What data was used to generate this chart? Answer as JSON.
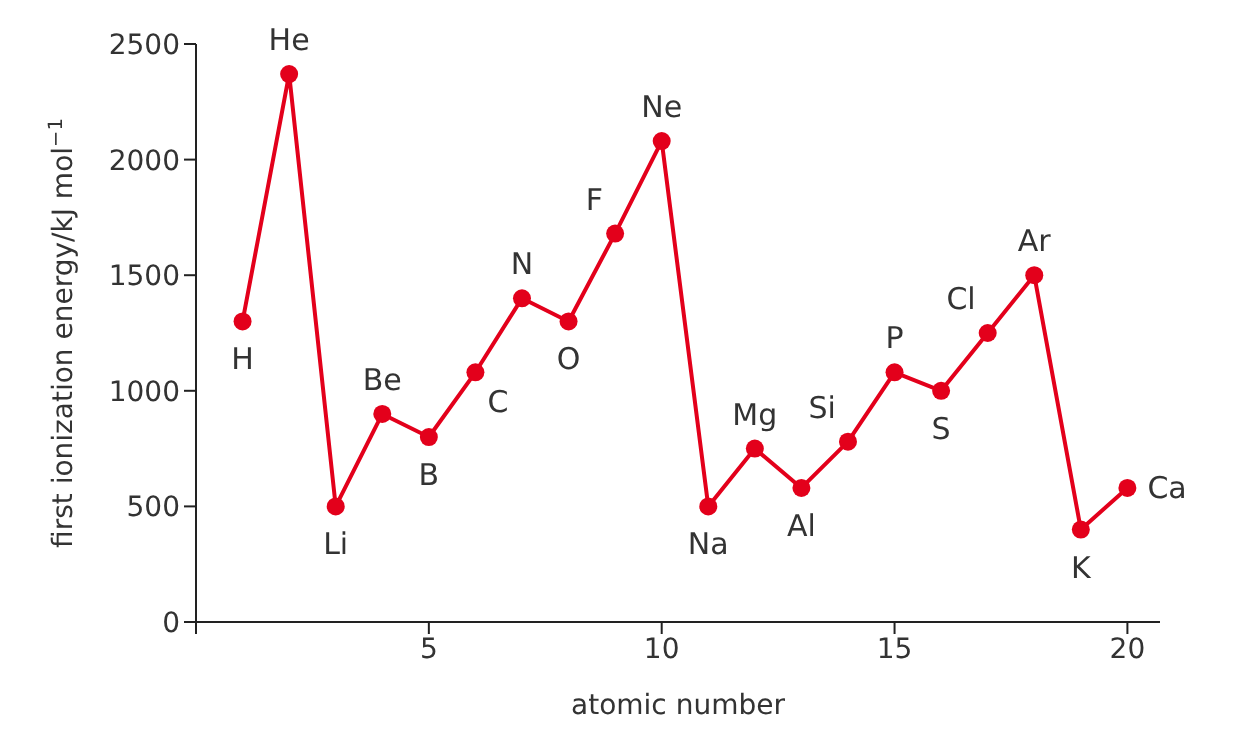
{
  "chart_data": {
    "type": "line",
    "xlabel": "atomic number",
    "ylabel": "first ionization energy/kJ mol$^{−1}$",
    "x": [
      1,
      2,
      3,
      4,
      5,
      6,
      7,
      8,
      9,
      10,
      11,
      12,
      13,
      14,
      15,
      16,
      17,
      18,
      19,
      20
    ],
    "series": [
      {
        "color": "#e3001b",
        "values": [
          1300,
          2370,
          500,
          900,
          800,
          1080,
          1400,
          1300,
          1680,
          2080,
          500,
          750,
          580,
          780,
          1080,
          1000,
          1250,
          1500,
          400,
          580
        ]
      }
    ],
    "xlim": [
      0,
      20.7
    ],
    "xticks": [
      {
        "value": 0,
        "label": null
      },
      5,
      10,
      15,
      20
    ],
    "ylim": [
      0,
      2500
    ],
    "yticks": [
      0,
      500,
      1000,
      1500,
      2000,
      2500
    ],
    "grid": false,
    "legend": false,
    "marker": "circle",
    "line_style": "solid",
    "annotations": [
      {
        "text": "H",
        "x": 1,
        "y": 1300
      },
      {
        "text": "He",
        "x": 2,
        "y": 2370
      },
      {
        "text": "Li",
        "x": 3,
        "y": 500
      },
      {
        "text": "Be",
        "x": 4,
        "y": 900
      },
      {
        "text": "B",
        "x": 5,
        "y": 800
      },
      {
        "text": "C",
        "x": 6,
        "y": 1080
      },
      {
        "text": "N",
        "x": 7,
        "y": 1400
      },
      {
        "text": "O",
        "x": 8,
        "y": 1300
      },
      {
        "text": "F",
        "x": 9,
        "y": 1680
      },
      {
        "text": "Ne",
        "x": 10,
        "y": 2080
      },
      {
        "text": "Na",
        "x": 11,
        "y": 500
      },
      {
        "text": "Mg",
        "x": 12,
        "y": 750
      },
      {
        "text": "Al",
        "x": 13,
        "y": 580
      },
      {
        "text": "Si",
        "x": 14,
        "y": 780
      },
      {
        "text": "P",
        "x": 15,
        "y": 1080
      },
      {
        "text": "S",
        "x": 16,
        "y": 1000
      },
      {
        "text": "Cl",
        "x": 17,
        "y": 1250
      },
      {
        "text": "Ar",
        "x": 18,
        "y": 1500
      },
      {
        "text": "K",
        "x": 19,
        "y": 400
      },
      {
        "text": "Ca",
        "x": 20,
        "y": 580
      }
    ]
  }
}
